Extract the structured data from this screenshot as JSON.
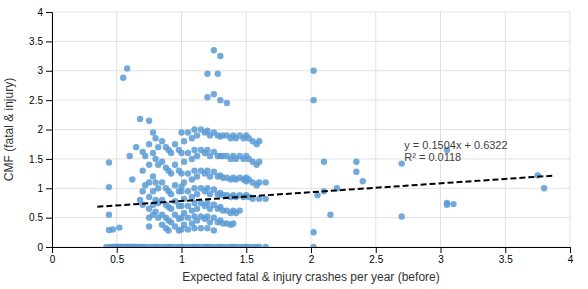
{
  "chart_data": {
    "type": "scatter",
    "xlabel": "Expected fatal & injury crashes per year (before)",
    "ylabel": "CMF (fatal & injury)",
    "xlim": [
      0,
      4
    ],
    "ylim": [
      0,
      4
    ],
    "xticks": [
      0,
      0.5,
      1,
      1.5,
      2,
      2.5,
      3,
      3.5,
      4
    ],
    "yticks": [
      0,
      0.5,
      1,
      1.5,
      2,
      2.5,
      3,
      3.5,
      4
    ],
    "grid": true,
    "series": [
      {
        "type": "scatter",
        "color": "#5B9BD5",
        "x": [
          0.42,
          0.45,
          0.47,
          0.48,
          0.49,
          0.5,
          0.51,
          0.52,
          0.53,
          0.54,
          0.55,
          0.57,
          0.58,
          0.59,
          0.6,
          0.61,
          0.62,
          0.63,
          0.64,
          0.65,
          0.67,
          0.68,
          0.7,
          0.72,
          0.75,
          0.78,
          0.8,
          0.82,
          0.85,
          0.88,
          0.9,
          0.92,
          0.95,
          0.98,
          1.0,
          1.02,
          1.05,
          1.08,
          1.1,
          1.12,
          1.15,
          1.18,
          1.2,
          1.22,
          1.25,
          1.28,
          1.3,
          1.32,
          1.35,
          1.38,
          1.4,
          1.42,
          1.45,
          1.48,
          1.5,
          1.52,
          1.55,
          1.58,
          1.6,
          1.65,
          0.44,
          0.47,
          0.52,
          0.44,
          0.44,
          0.44,
          0.55,
          0.58,
          0.6,
          0.62,
          0.65,
          0.68,
          0.68,
          0.7,
          0.7,
          0.7,
          0.7,
          0.72,
          0.72,
          0.75,
          0.75,
          0.75,
          0.75,
          0.75,
          0.75,
          0.75,
          0.75,
          0.78,
          0.78,
          0.78,
          0.78,
          0.78,
          0.78,
          0.8,
          0.8,
          0.8,
          0.8,
          0.8,
          0.82,
          0.82,
          0.82,
          0.82,
          0.82,
          0.85,
          0.85,
          0.85,
          0.85,
          0.85,
          0.85,
          0.88,
          0.88,
          0.88,
          0.88,
          0.88,
          0.88,
          0.9,
          0.9,
          0.9,
          0.9,
          0.9,
          0.9,
          0.92,
          0.92,
          0.92,
          0.92,
          0.92,
          0.95,
          0.95,
          0.95,
          0.95,
          0.95,
          0.95,
          0.98,
          0.98,
          0.98,
          0.98,
          0.98,
          0.98,
          1.0,
          1.0,
          1.0,
          1.0,
          1.0,
          1.0,
          1.0,
          1.0,
          1.02,
          1.02,
          1.02,
          1.02,
          1.02,
          1.02,
          1.05,
          1.05,
          1.05,
          1.05,
          1.05,
          1.05,
          1.05,
          1.08,
          1.08,
          1.08,
          1.08,
          1.08,
          1.08,
          1.1,
          1.1,
          1.1,
          1.1,
          1.1,
          1.1,
          1.1,
          1.12,
          1.12,
          1.12,
          1.12,
          1.12,
          1.12,
          1.15,
          1.15,
          1.15,
          1.15,
          1.15,
          1.15,
          1.15,
          1.18,
          1.18,
          1.18,
          1.18,
          1.18,
          1.18,
          1.2,
          1.2,
          1.2,
          1.2,
          1.2,
          1.2,
          1.2,
          1.2,
          1.2,
          1.22,
          1.22,
          1.22,
          1.22,
          1.22,
          1.22,
          1.25,
          1.25,
          1.25,
          1.25,
          1.25,
          1.25,
          1.25,
          1.25,
          1.25,
          1.28,
          1.28,
          1.28,
          1.28,
          1.28,
          1.28,
          1.28,
          1.3,
          1.3,
          1.3,
          1.3,
          1.3,
          1.3,
          1.3,
          1.3,
          1.32,
          1.32,
          1.32,
          1.32,
          1.32,
          1.32,
          1.35,
          1.35,
          1.35,
          1.35,
          1.35,
          1.35,
          1.35,
          1.38,
          1.38,
          1.38,
          1.38,
          1.38,
          1.38,
          1.4,
          1.4,
          1.4,
          1.4,
          1.4,
          1.4,
          1.42,
          1.42,
          1.42,
          1.42,
          1.42,
          1.45,
          1.45,
          1.45,
          1.45,
          1.45,
          1.48,
          1.48,
          1.48,
          1.48,
          1.5,
          1.5,
          1.5,
          1.5,
          1.5,
          1.52,
          1.52,
          1.52,
          1.52,
          1.55,
          1.55,
          1.55,
          1.55,
          1.58,
          1.58,
          1.58,
          1.6,
          1.6,
          1.6,
          1.6,
          1.65,
          1.65,
          2.02,
          2.02,
          2.02,
          2.02,
          2.05,
          2.1,
          2.1,
          2.15,
          2.2,
          2.35,
          2.35,
          2.4,
          2.7,
          2.7,
          3.05,
          3.05,
          3.05,
          3.1,
          3.75,
          3.8
        ],
        "values": [
          0.0,
          0.0,
          0.0,
          0.0,
          0.0,
          0.0,
          0.0,
          0.0,
          0.0,
          0.0,
          0.0,
          0.0,
          0.0,
          0.0,
          0.0,
          0.0,
          0.0,
          0.0,
          0.0,
          0.0,
          0.0,
          0.0,
          0.0,
          0.0,
          0.0,
          0.0,
          0.0,
          0.0,
          0.0,
          0.0,
          0.0,
          0.0,
          0.0,
          0.0,
          0.0,
          0.0,
          0.0,
          0.0,
          0.0,
          0.0,
          0.0,
          0.0,
          0.0,
          0.0,
          0.0,
          0.0,
          0.0,
          0.0,
          0.0,
          0.0,
          0.0,
          0.0,
          0.0,
          0.0,
          0.0,
          0.0,
          0.0,
          0.0,
          0.0,
          0.0,
          0.29,
          0.3,
          0.33,
          1.44,
          1.02,
          0.55,
          2.88,
          3.04,
          1.55,
          1.15,
          1.7,
          2.18,
          0.8,
          1.62,
          1.3,
          0.95,
          0.72,
          1.55,
          1.05,
          2.15,
          1.75,
          1.4,
          1.1,
          0.85,
          0.65,
          0.5,
          0.35,
          1.95,
          1.6,
          1.2,
          0.95,
          0.72,
          0.55,
          1.85,
          1.5,
          1.1,
          0.8,
          0.6,
          1.7,
          1.4,
          1.0,
          0.75,
          0.5,
          1.8,
          1.45,
          1.1,
          0.8,
          0.55,
          0.38,
          1.7,
          1.35,
          1.0,
          0.72,
          0.5,
          0.32,
          1.65,
          1.3,
          0.95,
          0.68,
          0.45,
          0.28,
          1.6,
          1.25,
          0.9,
          0.65,
          0.42,
          1.75,
          1.4,
          1.05,
          0.78,
          0.55,
          0.35,
          1.65,
          1.3,
          0.95,
          0.7,
          0.48,
          0.28,
          1.95,
          1.6,
          1.25,
          0.95,
          0.7,
          0.5,
          0.3,
          1.03,
          1.8,
          1.45,
          1.1,
          0.82,
          0.58,
          0.38,
          1.95,
          1.6,
          1.25,
          0.95,
          0.7,
          0.5,
          0.3,
          1.85,
          1.5,
          1.15,
          0.85,
          0.62,
          0.4,
          2.0,
          1.65,
          1.3,
          1.0,
          0.75,
          0.52,
          0.32,
          1.9,
          1.55,
          1.2,
          0.9,
          0.65,
          0.45,
          2.0,
          1.65,
          1.3,
          1.0,
          0.75,
          0.52,
          0.32,
          1.95,
          1.6,
          1.25,
          0.95,
          0.7,
          0.48,
          2.95,
          2.55,
          1.98,
          1.65,
          1.3,
          1.0,
          0.75,
          0.52,
          0.32,
          1.9,
          1.55,
          1.2,
          0.9,
          0.65,
          0.42,
          3.35,
          2.6,
          1.95,
          1.62,
          1.28,
          0.98,
          0.72,
          0.5,
          0.28,
          2.95,
          1.9,
          1.55,
          1.2,
          0.9,
          0.65,
          0.42,
          3.25,
          2.5,
          1.88,
          1.55,
          1.22,
          0.92,
          0.68,
          0.45,
          1.9,
          1.55,
          1.18,
          0.88,
          0.62,
          0.4,
          2.45,
          1.9,
          1.55,
          1.18,
          0.88,
          0.62,
          0.4,
          1.85,
          1.5,
          1.15,
          0.85,
          0.58,
          0.38,
          1.9,
          1.55,
          1.18,
          0.88,
          0.62,
          0.4,
          1.85,
          1.5,
          1.15,
          0.85,
          0.58,
          1.9,
          1.55,
          1.18,
          0.88,
          0.62,
          1.85,
          1.5,
          1.15,
          0.85,
          1.9,
          1.55,
          1.18,
          0.88,
          1.12,
          1.85,
          1.5,
          1.15,
          0.85,
          1.8,
          1.45,
          1.1,
          0.82,
          1.75,
          1.4,
          1.05,
          1.8,
          1.45,
          1.1,
          0.82,
          1.1,
          0.82,
          3.0,
          2.5,
          0.25,
          0.0,
          0.88,
          1.45,
          0.95,
          0.55,
          1.0,
          1.45,
          1.28,
          1.12,
          1.42,
          0.52,
          1.65,
          0.75,
          0.72,
          0.73,
          1.22,
          1.0
        ]
      },
      {
        "type": "line",
        "color": "#000000",
        "line_style": "dashed",
        "x": [
          0.35,
          3.88
        ],
        "values": [
          0.68484,
          1.215752
        ]
      }
    ],
    "annotations": [
      {
        "text": "y = 0.1504x + 0.6322",
        "x": 2.72,
        "y": 1.72
      },
      {
        "text": "R² = 0.0118",
        "x": 2.72,
        "y": 1.52
      }
    ]
  }
}
